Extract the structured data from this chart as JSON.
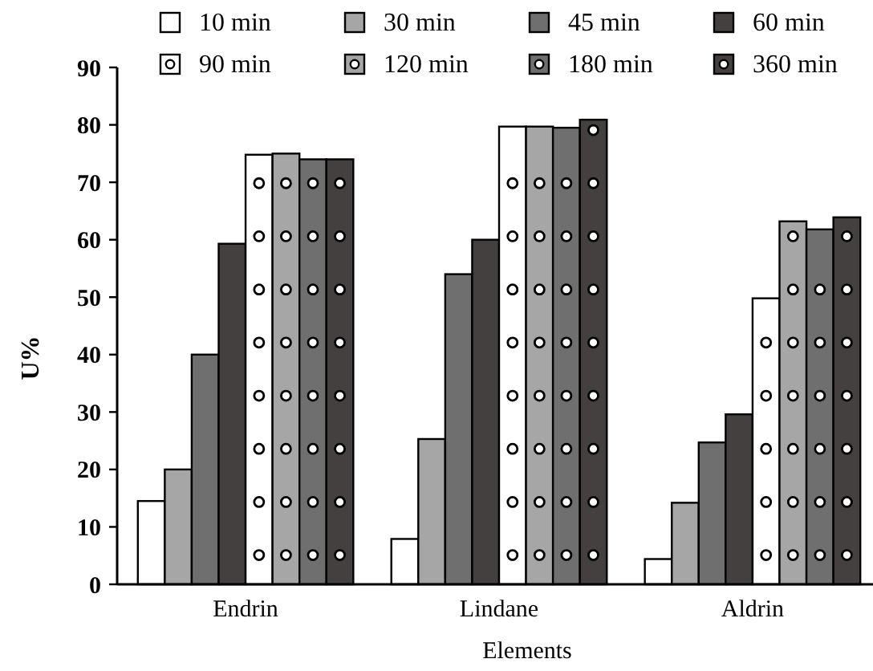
{
  "chart_data": {
    "type": "bar",
    "xlabel": "Elements",
    "ylabel": "U%",
    "categories": [
      "Endrin",
      "Lindane",
      "Aldrin"
    ],
    "ylim": [
      0,
      90
    ],
    "yticks": [
      0,
      10,
      20,
      30,
      40,
      50,
      60,
      70,
      80,
      90
    ],
    "grid": false,
    "legend": "top",
    "series": [
      {
        "name": "10 min",
        "color": "#ffffff",
        "values": [
          14.5,
          7.9,
          4.4
        ]
      },
      {
        "name": "30 min",
        "color": "#a6a6a6",
        "values": [
          20,
          25.3,
          14.2
        ]
      },
      {
        "name": "45 min",
        "color": "#6f6f6f",
        "values": [
          40,
          54,
          24.7
        ]
      },
      {
        "name": "60 min",
        "color": "#454040",
        "values": [
          59.3,
          60,
          29.6
        ]
      },
      {
        "name": "90 min",
        "color": "#ffffff",
        "marker": "circle",
        "values": [
          74.8,
          79.7,
          49.8
        ]
      },
      {
        "name": "120 min",
        "color": "#a6a6a6",
        "marker": "circle",
        "values": [
          75,
          79.7,
          63.2
        ]
      },
      {
        "name": "180 min",
        "color": "#6f6f6f",
        "marker": "circle",
        "values": [
          74,
          79.5,
          61.8
        ]
      },
      {
        "name": "360 min",
        "color": "#454040",
        "marker": "circle",
        "values": [
          74,
          80.9,
          63.9
        ]
      }
    ]
  }
}
